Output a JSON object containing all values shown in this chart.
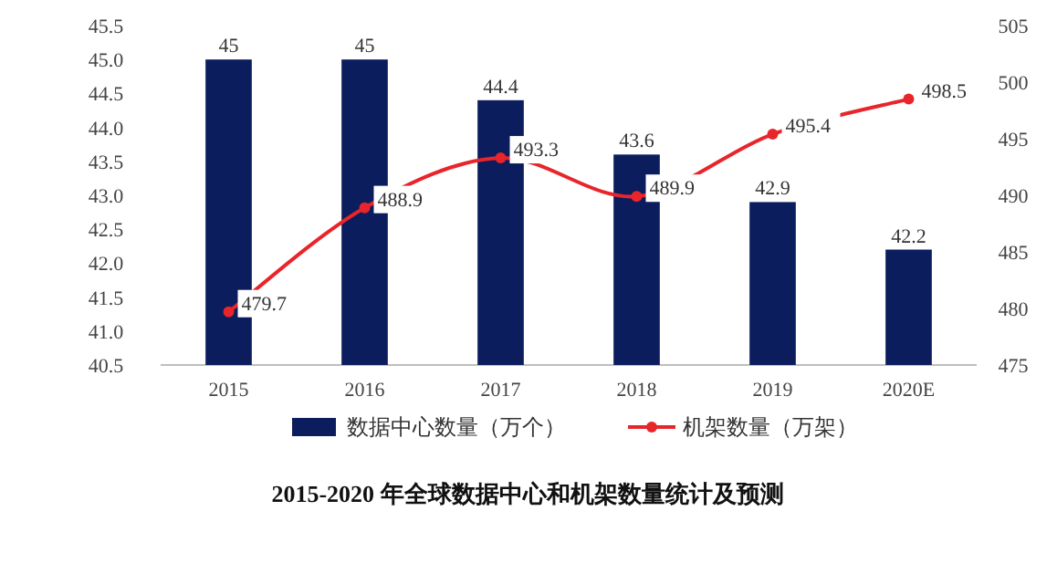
{
  "chart_data": {
    "type": "bar",
    "title": "2015-2020 年全球数据中心和机架数量统计及预测",
    "categories": [
      "2015",
      "2016",
      "2017",
      "2018",
      "2019",
      "2020E"
    ],
    "series": [
      {
        "name": "数据中心数量（万个）",
        "color": "#0c1d5e",
        "values": [
          45,
          45,
          44.4,
          43.6,
          42.9,
          42.2
        ]
      },
      {
        "name": "机架数量（万架）",
        "type": "line",
        "axis": "y2",
        "color": "#e8252a",
        "marker": "circle",
        "values": [
          479.7,
          488.9,
          493.3,
          489.9,
          495.4,
          498.5
        ]
      }
    ],
    "ylim": [
      40.5,
      45.5
    ],
    "yticks": [
      40.5,
      {
        "value": 41,
        "label": "41.0"
      },
      41.5,
      {
        "value": 42,
        "label": "42.0"
      },
      42.5,
      {
        "value": 43,
        "label": "43.0"
      },
      43.5,
      {
        "value": 44,
        "label": "44.0"
      },
      44.5,
      {
        "value": 45,
        "label": "45.0"
      },
      45.5
    ],
    "y2lim": [
      475,
      505
    ],
    "y2ticks": [
      475,
      480,
      485,
      490,
      495,
      500,
      505
    ],
    "data_labels": true,
    "legend": "bottom"
  }
}
